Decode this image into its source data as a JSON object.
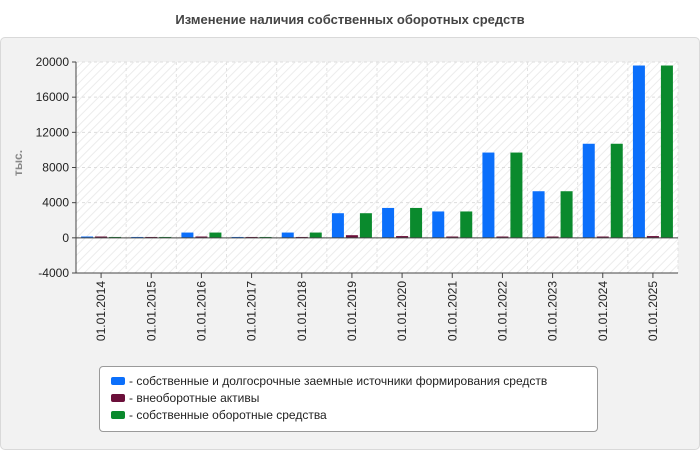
{
  "chart_data": {
    "type": "bar",
    "title": "Изменение наличия собственных оборотных средств",
    "ylabel": "тыс.",
    "xlabel": "",
    "ylim": [
      -4000,
      20000
    ],
    "yticks": [
      -4000,
      0,
      4000,
      8000,
      12000,
      16000,
      20000
    ],
    "grid": true,
    "legend_position": "bottom",
    "categories": [
      "01.01.2014",
      "01.01.2015",
      "01.01.2016",
      "01.01.2017",
      "01.01.2018",
      "01.01.2019",
      "01.01.2020",
      "01.01.2021",
      "01.01.2022",
      "01.01.2023",
      "01.01.2024",
      "01.01.2025"
    ],
    "series": [
      {
        "name": "- собственные и долгосрочные заемные источники формирования средств",
        "color": "#0b6ffb",
        "values": [
          150,
          100,
          600,
          100,
          600,
          2800,
          3400,
          3000,
          9700,
          5300,
          10700,
          19600
        ]
      },
      {
        "name": "- внеоборотные активы",
        "color": "#6b0f3a",
        "values": [
          150,
          100,
          150,
          100,
          100,
          300,
          200,
          150,
          150,
          150,
          150,
          200
        ]
      },
      {
        "name": "- собственные оборотные средства",
        "color": "#0a8a2d",
        "values": [
          100,
          100,
          600,
          100,
          600,
          2800,
          3400,
          3000,
          9700,
          5300,
          10700,
          19600
        ]
      }
    ]
  }
}
